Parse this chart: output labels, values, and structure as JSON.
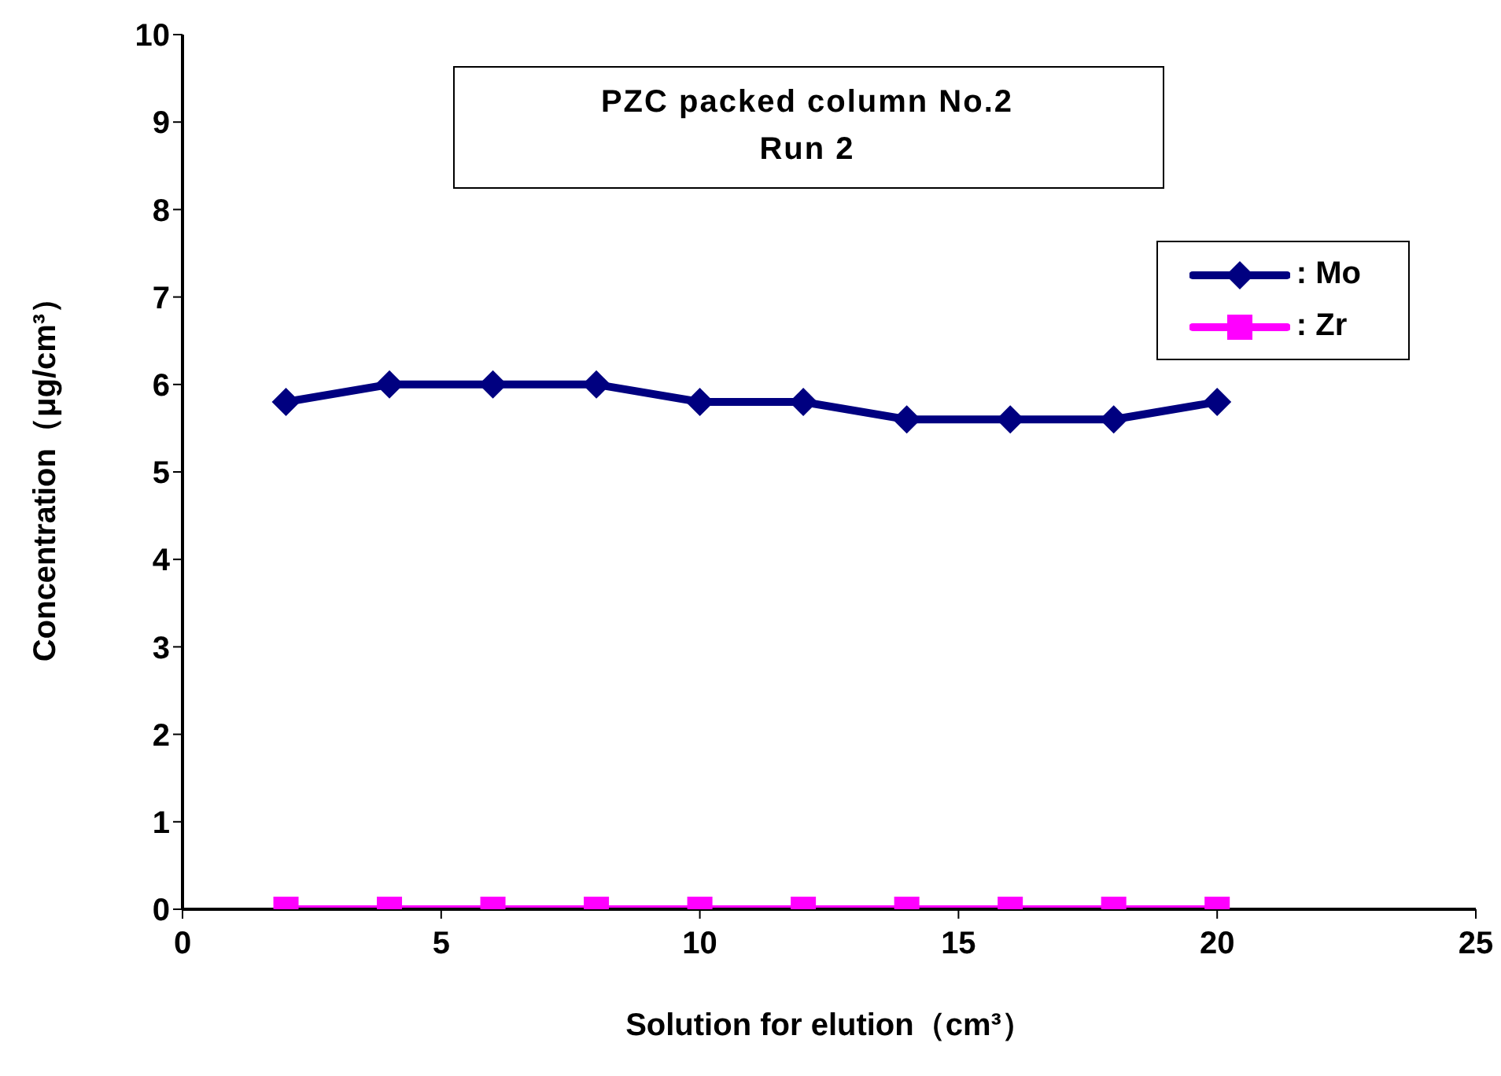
{
  "chart_data": {
    "type": "line",
    "title": "PZC packed column No.2",
    "subtitle": "Run 2",
    "xlabel": "Solution for elution（cm³）",
    "ylabel": "Concentration（μg/cm³）",
    "x": [
      2,
      4,
      6,
      8,
      10,
      12,
      14,
      16,
      18,
      20
    ],
    "series": [
      {
        "name": ": Mo",
        "color": "#000080",
        "marker": "diamond",
        "values": [
          5.8,
          6.0,
          6.0,
          6.0,
          5.8,
          5.8,
          5.6,
          5.6,
          5.6,
          5.8
        ]
      },
      {
        "name": ": Zr",
        "color": "#ff00ff",
        "marker": "square",
        "values": [
          0,
          0,
          0,
          0,
          0,
          0,
          0,
          0,
          0,
          0
        ]
      }
    ],
    "xlim": [
      0,
      25
    ],
    "xticks": [
      0,
      5,
      10,
      15,
      20,
      25
    ],
    "ylim": [
      0,
      10
    ],
    "yticks": [
      0,
      1,
      2,
      3,
      4,
      5,
      6,
      7,
      8,
      9,
      10
    ],
    "grid": false,
    "legend": "right",
    "line_style": "solid"
  }
}
